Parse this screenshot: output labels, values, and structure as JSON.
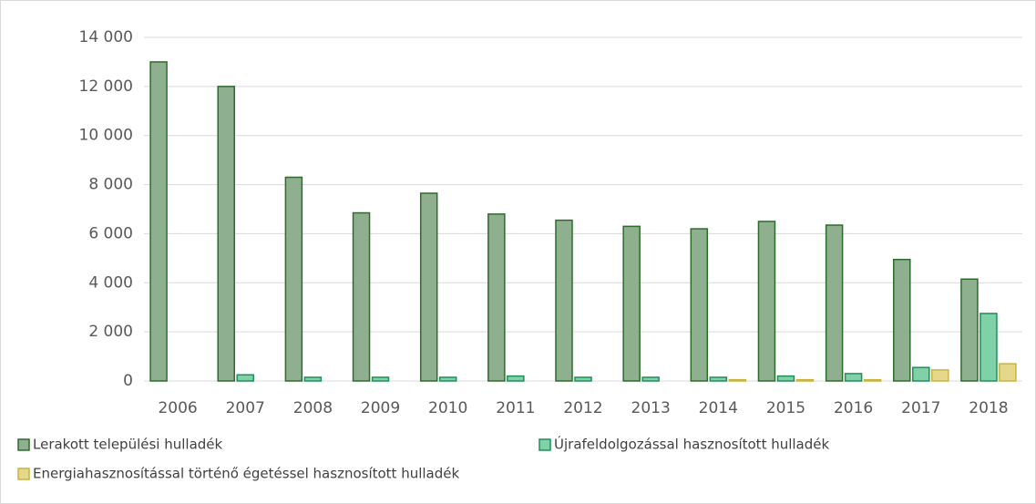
{
  "chart_data": {
    "type": "bar",
    "categories": [
      "2006",
      "2007",
      "2008",
      "2009",
      "2010",
      "2011",
      "2012",
      "2013",
      "2014",
      "2015",
      "2016",
      "2017",
      "2018"
    ],
    "series": [
      {
        "name": "Lerakott települési hulladék",
        "color": "#8fb08f",
        "stroke": "#2d6b2d",
        "values": [
          13000,
          12000,
          8300,
          6850,
          7650,
          6800,
          6550,
          6300,
          6200,
          6500,
          6350,
          4950,
          4150
        ]
      },
      {
        "name": "Újrafeldolgozással hasznosított hulladék",
        "color": "#80d0a8",
        "stroke": "#1f8f5a",
        "values": [
          0,
          250,
          150,
          150,
          150,
          200,
          150,
          150,
          150,
          200,
          300,
          550,
          2750
        ]
      },
      {
        "name": "Energiahasznosítással történő égetéssel hasznosított hulladék",
        "color": "#e6d88a",
        "stroke": "#c9b340",
        "values": [
          0,
          0,
          0,
          0,
          0,
          0,
          0,
          0,
          50,
          50,
          50,
          450,
          700
        ]
      }
    ],
    "ylim": [
      0,
      14000
    ],
    "yticks": [
      0,
      {
        "value": 2000,
        "label": "2 000"
      },
      {
        "value": 4000,
        "label": "4 000"
      },
      {
        "value": 6000,
        "label": "6 000"
      },
      {
        "value": 8000,
        "label": "8 000"
      },
      {
        "value": 10000,
        "label": "10 000"
      },
      {
        "value": 12000,
        "label": "12 000"
      },
      {
        "value": 14000,
        "label": "14 000"
      }
    ],
    "grid": true
  }
}
